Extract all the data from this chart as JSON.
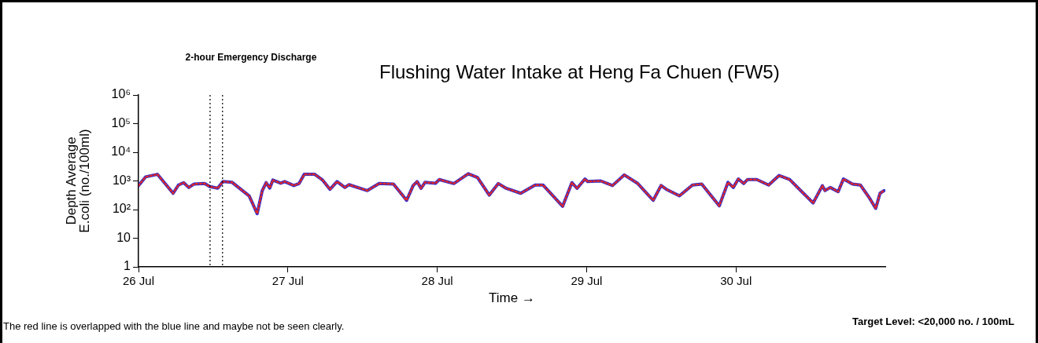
{
  "chart_data": {
    "type": "line",
    "title": "Flushing Water Intake at Heng Fa Chuen (FW5)",
    "xlabel": "Time →",
    "ylabel": "Depth Average\nE.coli (no./100ml)",
    "annotations": [
      "The red line is overlapped with the blue line and maybe not be seen clearly.",
      "Target Level: <20,000 no. / 100mL"
    ],
    "x": [
      "--07-26T00:00",
      "--07-26T01:08",
      "--07-26T03:02",
      "--07-26T05:34",
      "--07-26T06:25",
      "--07-26T07:15",
      "--07-26T08:05",
      "--07-26T08:56",
      "--07-26T10:37",
      "--07-26T11:28",
      "--07-26T12:44",
      "--07-26T13:34",
      "--07-26T15:03",
      "--07-26T17:47",
      "--07-26T19:04",
      "--07-26T19:53",
      "--07-26T20:31",
      "--07-26T21:05",
      "--07-26T21:35",
      "--07-26T22:51",
      "--07-26T23:29",
      "--07-27T00:57",
      "--07-27T01:48",
      "--07-27T02:38",
      "--07-27T04:19",
      "--07-27T05:35",
      "--07-27T06:46",
      "--07-27T07:54",
      "--07-27T09:10",
      "--07-27T09:48",
      "--07-27T12:46",
      "--07-27T14:40",
      "--07-27T16:58",
      "--07-27T19:05",
      "--07-27T20:08",
      "--07-27T20:46",
      "--07-27T21:24",
      "--07-27T22:02",
      "--07-27T23:43",
      "--07-28T00:20",
      "--07-28T02:40",
      "--07-28T04:59",
      "--07-28T06:28",
      "--07-28T08:22",
      "--07-28T09:49",
      "--07-28T11:05",
      "--07-28T13:25",
      "--07-28T15:44",
      "--07-28T16:59",
      "--07-28T20:09",
      "--07-28T21:38",
      "--07-28T22:28",
      "--07-28T23:44",
      "--07-29T00:10",
      "--07-29T02:16",
      "--07-29T04:10",
      "--07-29T06:04",
      "--07-29T08:10",
      "--07-29T10:42",
      "--07-29T11:58",
      "--07-29T12:49",
      "--07-29T14:55",
      "--07-29T17:01",
      "--07-29T18:30",
      "--07-29T21:19",
      "--07-29T22:43",
      "--07-29T23:34",
      "--07-30T00:23",
      "--07-30T01:14",
      "--07-30T01:52",
      "--07-30T03:21",
      "--07-30T05:15",
      "--07-30T06:56",
      "--07-30T08:37",
      "--07-30T12:24",
      "--07-30T13:53",
      "--07-30T14:18",
      "--07-30T15:09",
      "--07-30T16:25",
      "--07-30T17:16",
      "--07-30T18:44",
      "--07-30T19:59",
      "--07-30T21:28",
      "--07-30T22:27",
      "--07-30T23:09",
      "--07-30T23:47"
    ],
    "series": [
      {
        "color": "#2a2ad0",
        "line_style": "solid",
        "values": [
          690,
          1380,
          1700,
          370,
          720,
          870,
          590,
          780,
          810,
          630,
          560,
          950,
          890,
          300,
          72,
          460,
          870,
          560,
          1070,
          830,
          950,
          690,
          810,
          1700,
          1700,
          1070,
          510,
          950,
          590,
          740,
          460,
          810,
          780,
          210,
          690,
          950,
          550,
          890,
          830,
          1120,
          810,
          1780,
          1320,
          320,
          810,
          550,
          370,
          720,
          720,
          130,
          870,
          550,
          1170,
          950,
          1000,
          690,
          1620,
          830,
          210,
          690,
          510,
          300,
          720,
          780,
          135,
          890,
          590,
          1170,
          810,
          1120,
          1120,
          720,
          1550,
          1120,
          170,
          680,
          460,
          590,
          420,
          1170,
          780,
          720,
          250,
          110,
          370,
          460
        ]
      },
      {
        "color": "#e02828",
        "line_style": "dotted",
        "values": [
          690,
          1380,
          1700,
          370,
          720,
          870,
          590,
          780,
          810,
          630,
          560,
          950,
          890,
          300,
          72,
          460,
          870,
          560,
          1070,
          830,
          950,
          690,
          810,
          1700,
          1700,
          1070,
          510,
          950,
          590,
          740,
          460,
          810,
          780,
          210,
          690,
          950,
          550,
          890,
          830,
          1120,
          810,
          1780,
          1320,
          320,
          810,
          550,
          370,
          720,
          720,
          130,
          870,
          550,
          1170,
          950,
          1000,
          690,
          1620,
          830,
          210,
          690,
          510,
          300,
          720,
          780,
          135,
          890,
          590,
          1170,
          810,
          1120,
          1120,
          720,
          1550,
          1120,
          170,
          680,
          460,
          590,
          420,
          1170,
          780,
          720,
          250,
          110,
          370,
          460
        ]
      }
    ],
    "xlim": [
      "--07-26",
      "--07-31"
    ],
    "xticks": [
      {
        "value": "--07-26",
        "label": "26 Jul"
      },
      {
        "value": "--07-27",
        "label": "27 Jul"
      },
      {
        "value": "--07-28",
        "label": "28 Jul"
      },
      {
        "value": "--07-29",
        "label": "29 Jul"
      },
      {
        "value": "--07-30",
        "label": "30 Jul"
      }
    ],
    "ylim": [
      1,
      1000000
    ],
    "yticks": [
      1,
      10,
      {
        "value": 100,
        "label": "10²"
      },
      {
        "value": 1000,
        "label": "10³"
      },
      {
        "value": 10000,
        "label": "10⁴"
      },
      {
        "value": 100000,
        "label": "10⁵"
      },
      {
        "value": 1000000,
        "label": "10⁶"
      }
    ],
    "log": "y",
    "grid": false,
    "legend": false,
    "marker": "none",
    "ref_lines": [
      {
        "axis": "x",
        "value": "--07-26T11:30",
        "label": "2-hour Emergency Discharge",
        "color": "#000000",
        "line_style": "dotted"
      },
      {
        "axis": "x",
        "value": "--07-26T13:30",
        "color": "#000000",
        "line_style": "dotted"
      }
    ]
  }
}
